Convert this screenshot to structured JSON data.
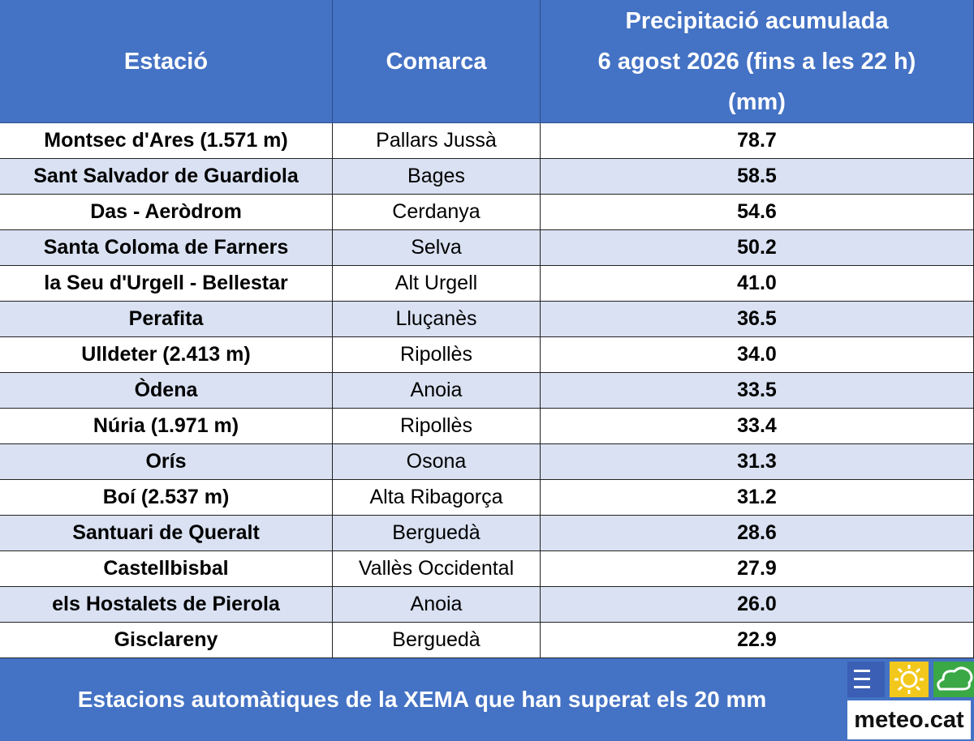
{
  "table": {
    "header": [
      "Estació",
      "Comarca",
      [
        "Precipitació acumulada",
        "6 agost 2026 (fins a les 22 h)",
        "(mm)"
      ]
    ],
    "rows": [
      [
        "Montsec d'Ares (1.571 m)",
        "Pallars Jussà",
        "78.7"
      ],
      [
        "Sant Salvador de Guardiola",
        "Bages",
        "58.5"
      ],
      [
        "Das - Aeròdrom",
        "Cerdanya",
        "54.6"
      ],
      [
        "Santa Coloma de Farners",
        "Selva",
        "50.2"
      ],
      [
        "la Seu d'Urgell - Bellestar",
        "Alt Urgell",
        "41.0"
      ],
      [
        "Perafita",
        "Lluçanès",
        "36.5"
      ],
      [
        "Ulldeter (2.413 m)",
        "Ripollès",
        "34.0"
      ],
      [
        "Òdena",
        "Anoia",
        "33.5"
      ],
      [
        "Núria (1.971 m)",
        "Ripollès",
        "33.4"
      ],
      [
        "Orís",
        "Osona",
        "31.3"
      ],
      [
        "Boí (2.537 m)",
        "Alta Ribagorça",
        "31.2"
      ],
      [
        "Santuari de Queralt",
        "Berguedà",
        "28.6"
      ],
      [
        "Castellbisbal",
        "Vallès Occidental",
        "27.9"
      ],
      [
        "els Hostalets de Pierola",
        "Anoia",
        "26.0"
      ],
      [
        "Gisclareny",
        "Berguedà",
        "22.9"
      ]
    ]
  },
  "footer": {
    "caption": "Estacions automàtiques de la XEMA que han superat els 20 mm",
    "logo": "meteo.cat"
  }
}
